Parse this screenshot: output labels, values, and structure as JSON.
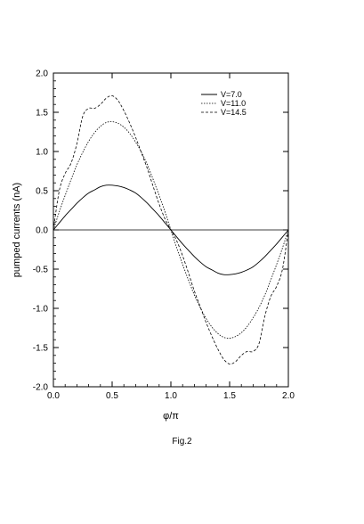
{
  "chart_data": {
    "type": "line",
    "xlabel": "φ/π",
    "ylabel": "pumped currents (nA)",
    "xlim": [
      0.0,
      2.0
    ],
    "ylim": [
      -2.0,
      2.0
    ],
    "xticks": [
      "0.0",
      "0.5",
      "1.0",
      "1.5",
      "2.0"
    ],
    "yticks": [
      "2.0",
      "1.5",
      "1.0",
      "0.5",
      "0.0",
      "-0.5",
      "-1.0",
      "-1.5",
      "-2.0"
    ],
    "grid": false,
    "legend_position": "top-right",
    "zero_line": true,
    "x": [
      0.0,
      0.05,
      0.1,
      0.15,
      0.2,
      0.25,
      0.3,
      0.35,
      0.4,
      0.45,
      0.5,
      0.55,
      0.6,
      0.65,
      0.7,
      0.75,
      0.8,
      0.85,
      0.9,
      0.95,
      1.0,
      1.05,
      1.1,
      1.15,
      1.2,
      1.25,
      1.3,
      1.35,
      1.4,
      1.45,
      1.5,
      1.55,
      1.6,
      1.65,
      1.7,
      1.75,
      1.8,
      1.85,
      1.9,
      1.95,
      2.0
    ],
    "series": [
      {
        "name": "V=7.0",
        "style": "solid",
        "values": [
          0.0,
          0.09,
          0.18,
          0.26,
          0.34,
          0.41,
          0.47,
          0.51,
          0.55,
          0.57,
          0.57,
          0.56,
          0.54,
          0.51,
          0.47,
          0.41,
          0.34,
          0.26,
          0.18,
          0.09,
          0.0,
          -0.09,
          -0.18,
          -0.26,
          -0.34,
          -0.41,
          -0.47,
          -0.51,
          -0.55,
          -0.57,
          -0.57,
          -0.56,
          -0.54,
          -0.51,
          -0.47,
          -0.41,
          -0.34,
          -0.26,
          -0.18,
          -0.09,
          0.0
        ]
      },
      {
        "name": "V=11.0",
        "style": "dotted",
        "values": [
          0.0,
          0.23,
          0.44,
          0.64,
          0.83,
          0.99,
          1.13,
          1.24,
          1.32,
          1.37,
          1.38,
          1.36,
          1.31,
          1.23,
          1.12,
          0.99,
          0.83,
          0.64,
          0.44,
          0.23,
          0.0,
          -0.23,
          -0.44,
          -0.64,
          -0.83,
          -0.99,
          -1.13,
          -1.24,
          -1.32,
          -1.37,
          -1.38,
          -1.36,
          -1.31,
          -1.23,
          -1.12,
          -0.99,
          -0.83,
          -0.64,
          -0.44,
          -0.23,
          0.0
        ]
      },
      {
        "name": "V=14.5",
        "style": "dashed",
        "values": [
          0.0,
          0.5,
          0.72,
          0.85,
          1.1,
          1.45,
          1.55,
          1.55,
          1.6,
          1.68,
          1.71,
          1.65,
          1.52,
          1.36,
          1.18,
          0.98,
          0.78,
          0.55,
          0.33,
          0.14,
          0.0,
          -0.14,
          -0.33,
          -0.55,
          -0.78,
          -0.98,
          -1.18,
          -1.36,
          -1.52,
          -1.65,
          -1.71,
          -1.68,
          -1.6,
          -1.55,
          -1.55,
          -1.45,
          -1.1,
          -0.85,
          -0.72,
          -0.5,
          0.0
        ]
      }
    ]
  },
  "caption": "Fig.2"
}
